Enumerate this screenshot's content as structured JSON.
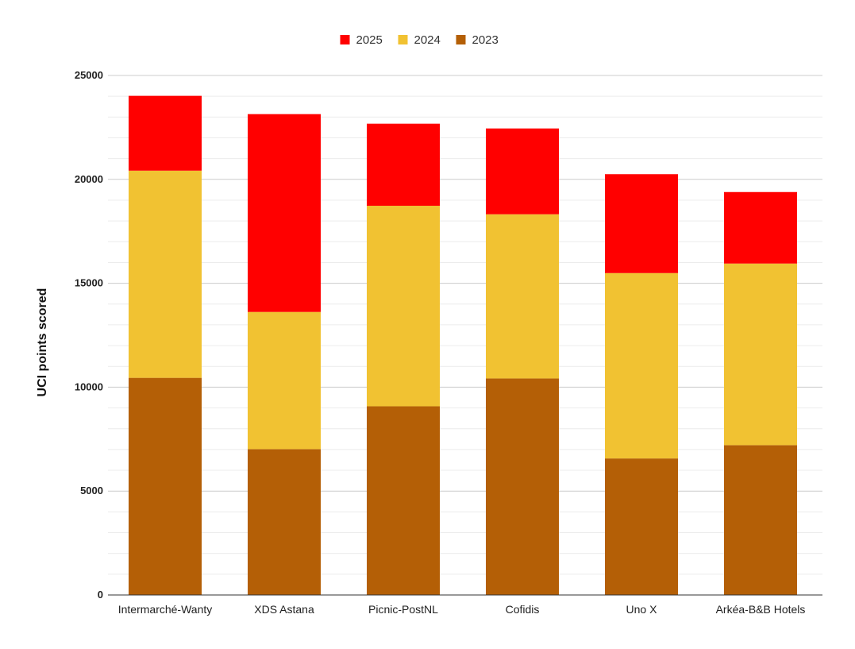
{
  "chart_data": {
    "type": "bar",
    "stacked": true,
    "ylabel": "UCI points scored",
    "xlabel": "",
    "ylim": [
      0,
      25000
    ],
    "y_ticks": [
      0,
      5000,
      10000,
      15000,
      20000,
      25000
    ],
    "minor_gridlines": true,
    "legend_position": "top",
    "categories": [
      "Intermarché-Wanty",
      "XDS Astana",
      "Picnic-PostNL",
      "Cofidis",
      "Uno X",
      "Arkéa-B&B Hotels"
    ],
    "series": [
      {
        "name": "2023",
        "color": "#b45f06",
        "values": [
          10450,
          7020,
          9080,
          10420,
          6570,
          7210
        ]
      },
      {
        "name": "2024",
        "color": "#f1c232",
        "values": [
          9970,
          6600,
          9650,
          7900,
          8920,
          8740
        ]
      },
      {
        "name": "2025",
        "color": "#ff0000",
        "values": [
          3600,
          9520,
          3950,
          4130,
          4760,
          3440
        ]
      }
    ],
    "legend_order": [
      "2025",
      "2024",
      "2023"
    ]
  }
}
